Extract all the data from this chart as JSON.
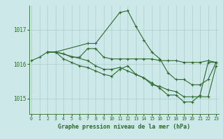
{
  "title": "Graphe pression niveau de la mer (hPa)",
  "bg_color": "#cce8e8",
  "plot_bg": "#cce8e8",
  "line_color": "#2d6a2d",
  "grid_color": "#aacccc",
  "x_ticks": [
    0,
    1,
    2,
    3,
    4,
    5,
    6,
    7,
    8,
    9,
    10,
    11,
    12,
    13,
    14,
    15,
    16,
    17,
    18,
    19,
    20,
    21,
    22,
    23
  ],
  "y_ticks": [
    1015,
    1016,
    1017
  ],
  "ylim": [
    1014.55,
    1017.7
  ],
  "xlim": [
    -0.3,
    23.3
  ],
  "series": [
    {
      "x": [
        0,
        1,
        2,
        3,
        4,
        5,
        6,
        7,
        8,
        9,
        10,
        11,
        12,
        13,
        14,
        15,
        16,
        17,
        18,
        19,
        20,
        21,
        22,
        23
      ],
      "y": [
        1016.1,
        1016.2,
        1016.35,
        1016.35,
        1016.3,
        1016.2,
        1016.2,
        1016.45,
        1016.45,
        1016.2,
        1016.15,
        1016.15,
        1016.15,
        1016.15,
        1016.15,
        1016.15,
        1016.1,
        1016.1,
        1016.1,
        1016.05,
        1016.05,
        1016.05,
        1016.1,
        1016.05
      ]
    },
    {
      "x": [
        2,
        3,
        7,
        8,
        11,
        12,
        13,
        14,
        15,
        16,
        17,
        18,
        19,
        20,
        21,
        22,
        23
      ],
      "y": [
        1016.35,
        1016.35,
        1016.6,
        1016.6,
        1017.5,
        1017.55,
        1017.1,
        1016.7,
        1016.35,
        1016.15,
        1015.75,
        1015.55,
        1015.55,
        1015.4,
        1015.4,
        1015.55,
        1016.05
      ]
    },
    {
      "x": [
        2,
        3,
        7,
        8,
        9,
        10,
        11,
        12,
        13,
        14,
        15,
        16,
        17,
        18,
        19,
        20,
        21,
        22,
        23
      ],
      "y": [
        1016.35,
        1016.35,
        1016.1,
        1015.95,
        1015.85,
        1015.85,
        1015.9,
        1015.8,
        1015.7,
        1015.6,
        1015.4,
        1015.35,
        1015.25,
        1015.2,
        1015.05,
        1015.05,
        1015.05,
        1015.05,
        1015.95
      ]
    },
    {
      "x": [
        2,
        3,
        4,
        5,
        6,
        7,
        8,
        9,
        10,
        11,
        12,
        13,
        14,
        15,
        16,
        17,
        18,
        19,
        20,
        21,
        22,
        23
      ],
      "y": [
        1016.35,
        1016.35,
        1016.15,
        1016.05,
        1015.95,
        1015.9,
        1015.8,
        1015.7,
        1015.65,
        1015.85,
        1015.95,
        1015.7,
        1015.6,
        1015.45,
        1015.3,
        1015.1,
        1015.1,
        1014.9,
        1014.9,
        1015.1,
        1016.05,
        1016.05
      ]
    }
  ]
}
